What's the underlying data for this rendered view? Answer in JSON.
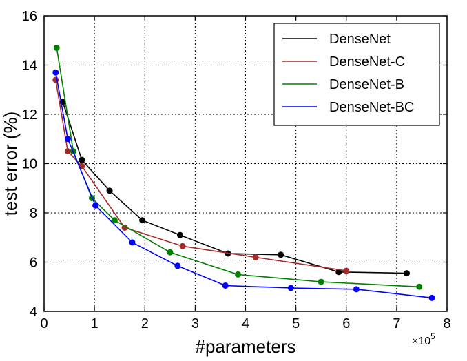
{
  "chart_data": {
    "type": "line",
    "title": "",
    "xlabel": "#parameters",
    "ylabel": "test error (%)",
    "x_multiplier_label": "×10",
    "x_multiplier_exp": "5",
    "xlim": [
      0,
      8
    ],
    "ylim": [
      4,
      16
    ],
    "x_ticks": [
      "0",
      "1",
      "2",
      "3",
      "4",
      "5",
      "6",
      "7",
      "8"
    ],
    "y_ticks": [
      "4",
      "6",
      "8",
      "10",
      "12",
      "14",
      "16"
    ],
    "x_tick_values": [
      0,
      1,
      2,
      3,
      4,
      5,
      6,
      7,
      8
    ],
    "y_tick_values": [
      4,
      6,
      8,
      10,
      12,
      14,
      16
    ],
    "grid": true,
    "legend_position": "top-right",
    "series": [
      {
        "name": "DenseNet",
        "color": "#000000",
        "x": [
          0.37,
          0.75,
          1.3,
          1.95,
          2.7,
          3.65,
          4.7,
          5.85,
          7.2
        ],
        "y": [
          12.5,
          10.15,
          8.9,
          7.7,
          7.1,
          6.35,
          6.3,
          5.6,
          5.55
        ]
      },
      {
        "name": "DenseNet-C",
        "color": "#a52a2a",
        "x": [
          0.23,
          0.47,
          0.75,
          1.6,
          2.75,
          4.2,
          6.0
        ],
        "y": [
          13.4,
          10.5,
          9.9,
          7.4,
          6.65,
          6.2,
          5.65
        ]
      },
      {
        "name": "DenseNet-B",
        "color": "#008000",
        "x": [
          0.25,
          0.58,
          0.95,
          1.4,
          2.5,
          3.85,
          5.5,
          7.45
        ],
        "y": [
          14.7,
          10.5,
          8.6,
          7.7,
          6.4,
          5.5,
          5.2,
          5.0
        ]
      },
      {
        "name": "DenseNet-BC",
        "color": "#0000ff",
        "x": [
          0.23,
          0.47,
          1.02,
          1.75,
          2.65,
          3.6,
          4.9,
          6.2,
          7.7
        ],
        "y": [
          13.7,
          11.0,
          8.3,
          6.8,
          5.85,
          5.05,
          4.95,
          4.9,
          4.55
        ]
      }
    ]
  }
}
